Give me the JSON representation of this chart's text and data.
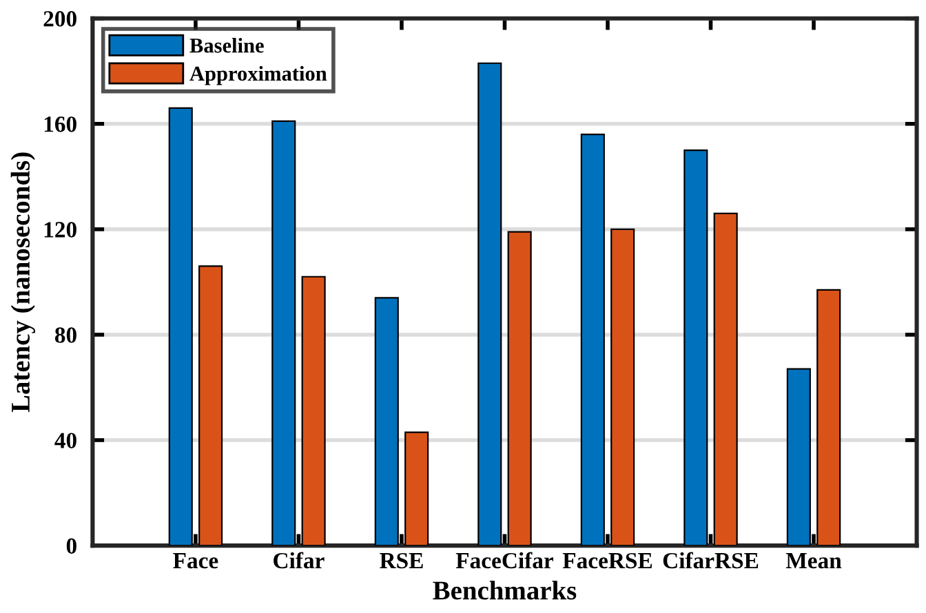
{
  "chart_data": {
    "type": "bar",
    "xlabel": "Benchmarks",
    "ylabel": "Latency (nanoseconds)",
    "categories": [
      "Face",
      "Cifar",
      "RSE",
      "FaceCifar",
      "FaceRSE",
      "CifarRSE",
      "Mean"
    ],
    "series": [
      {
        "name": "Baseline",
        "color": "#0072bd",
        "values": [
          166,
          161,
          94,
          183,
          156,
          150,
          67
        ]
      },
      {
        "name": "Approximation",
        "color": "#d95319",
        "values": [
          106,
          102,
          43,
          119,
          120,
          126,
          97
        ]
      }
    ],
    "ylim": [
      0,
      200
    ],
    "yticks": [
      0,
      40,
      80,
      120,
      160,
      200
    ],
    "grid": "y",
    "legend": "top left"
  }
}
